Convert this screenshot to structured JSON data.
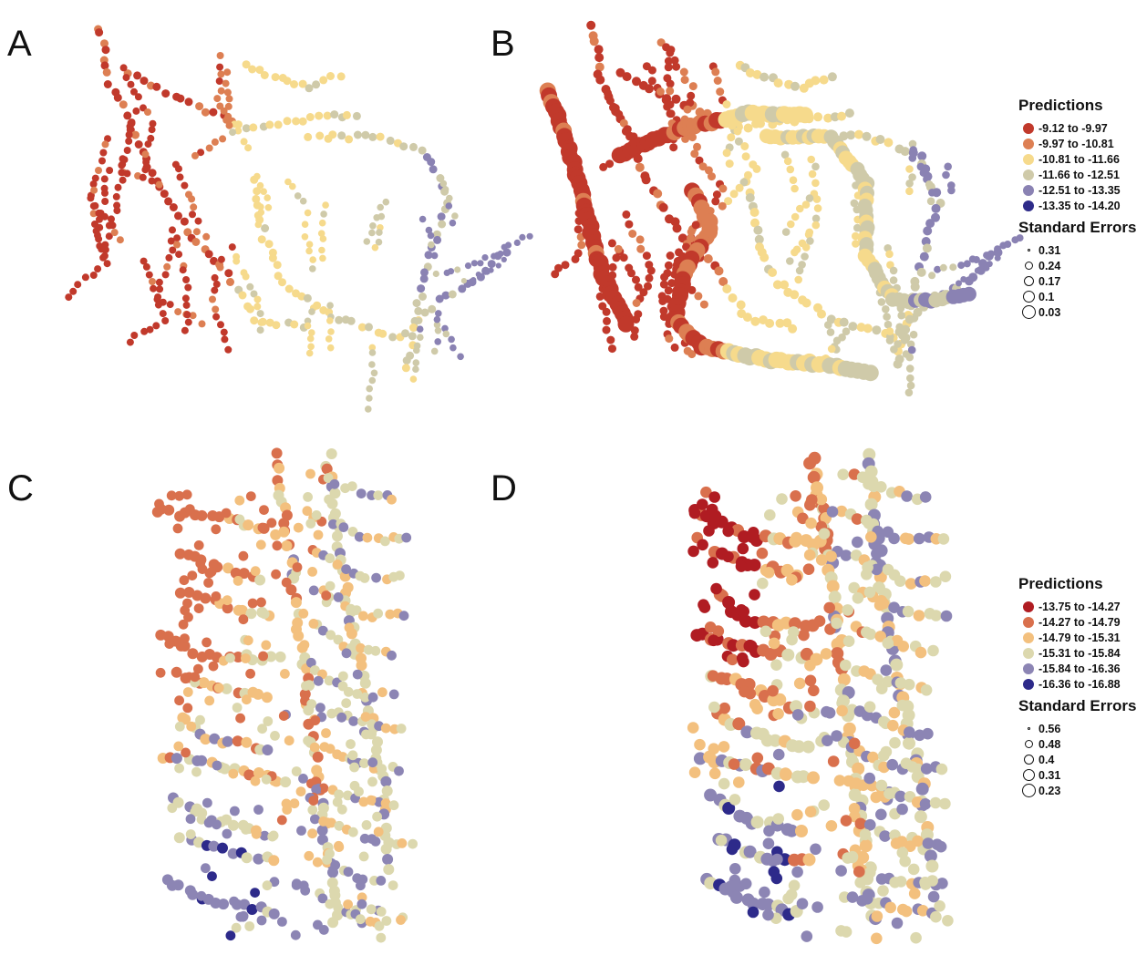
{
  "panels": [
    {
      "letter": "A"
    },
    {
      "letter": "B"
    },
    {
      "letter": "C"
    },
    {
      "letter": "D"
    }
  ],
  "legend_top": {
    "predictions_title": "Predictions",
    "classes": [
      {
        "label": "-9.12 to -9.97",
        "color": "#c1392b"
      },
      {
        "label": "-9.97 to -10.81",
        "color": "#dd7f53"
      },
      {
        "label": "-10.81 to -11.66",
        "color": "#f6da8c"
      },
      {
        "label": "-11.66 to -12.51",
        "color": "#cfcaa9"
      },
      {
        "label": "-12.51 to -13.35",
        "color": "#8a82b3"
      },
      {
        "label": "-13.35 to -14.20",
        "color": "#2e2b89"
      }
    ],
    "se_title": "Standard Errors",
    "se_values": [
      "0.31",
      "0.24",
      "0.17",
      "0.1",
      "0.03"
    ]
  },
  "legend_bottom": {
    "predictions_title": "Predictions",
    "classes": [
      {
        "label": "-13.75 to -14.27",
        "color": "#b01c22"
      },
      {
        "label": "-14.27 to -14.79",
        "color": "#d9704d"
      },
      {
        "label": "-14.79 to -15.31",
        "color": "#f3c07e"
      },
      {
        "label": "-15.31 to -15.84",
        "color": "#dcd8ae"
      },
      {
        "label": "-15.84 to -16.36",
        "color": "#8c85b4"
      },
      {
        "label": "-16.36 to -16.88",
        "color": "#2d2a8a"
      }
    ],
    "se_title": "Standard Errors",
    "se_values": [
      "0.56",
      "0.48",
      "0.4",
      "0.31",
      "0.23"
    ]
  }
}
